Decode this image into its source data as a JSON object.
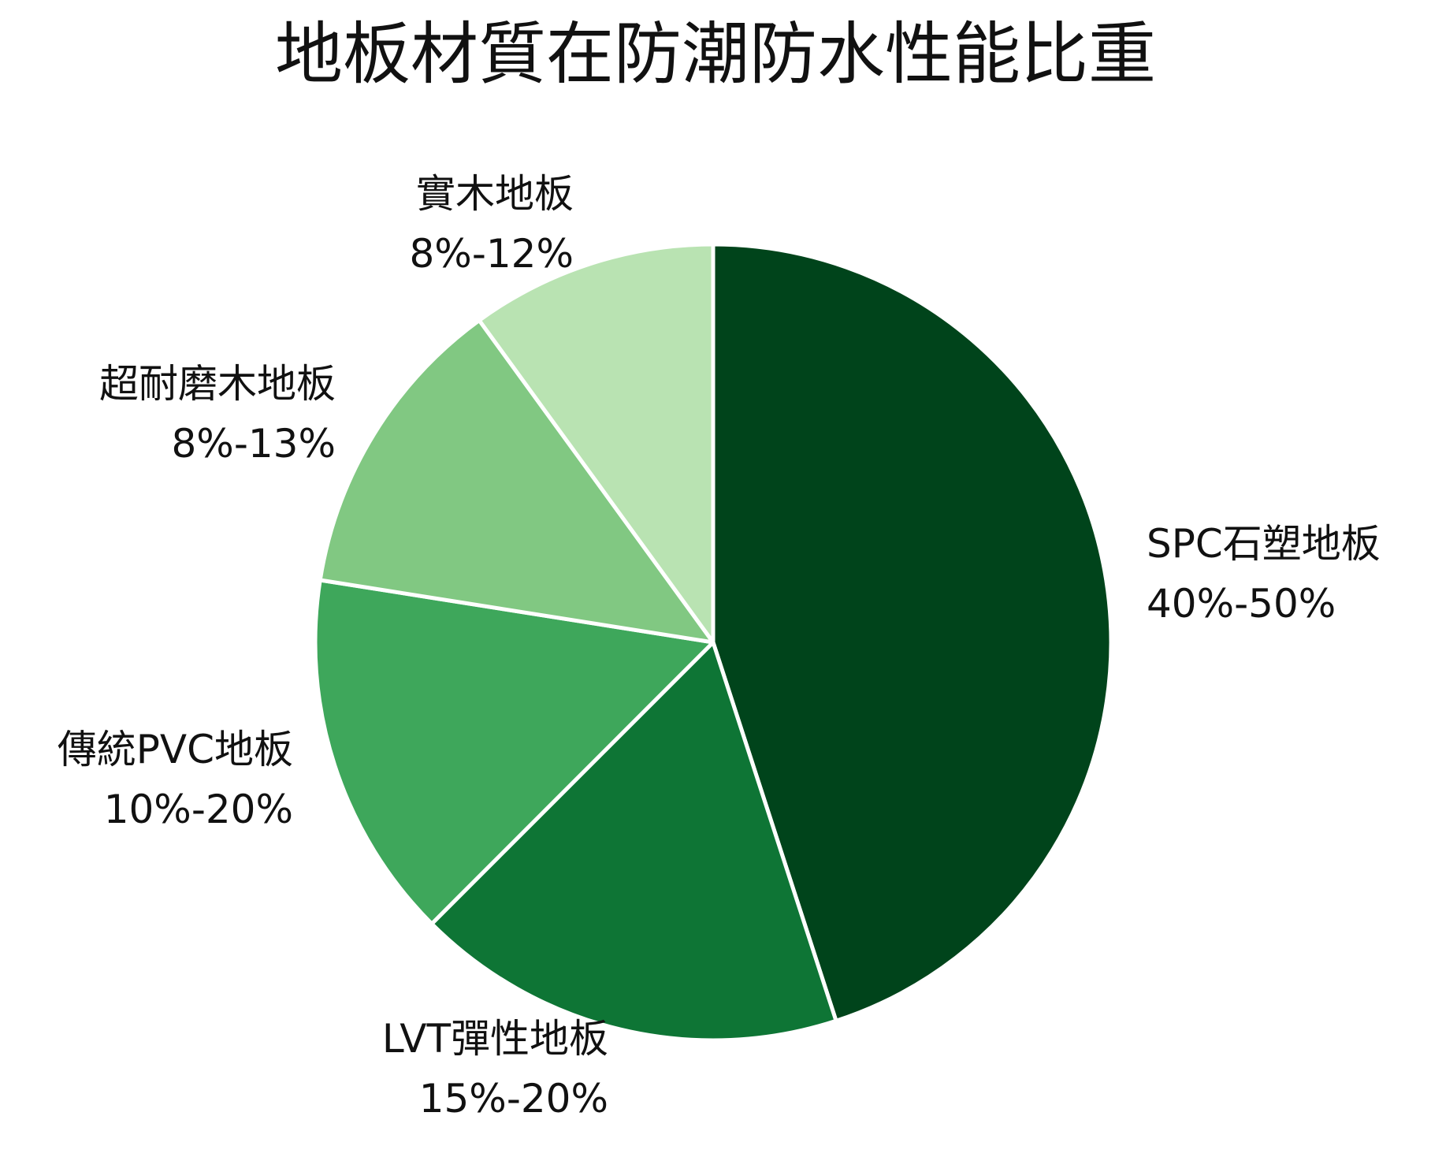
{
  "chart_data": {
    "type": "pie",
    "title": "地板材質在防潮防水性能比重",
    "slices": [
      {
        "name": "SPC石塑地板",
        "range_label": "40%-50%",
        "value": 45,
        "color": "#00441b",
        "label_side": "right"
      },
      {
        "name": "LVT彈性地板",
        "range_label": "15%-20%",
        "value": 17.5,
        "color": "#0e7535",
        "label_side": "right"
      },
      {
        "name": "傳統PVC地板",
        "range_label": "10%-20%",
        "value": 15,
        "color": "#3ea75b",
        "label_side": "left"
      },
      {
        "name": "超耐磨木地板",
        "range_label": "8%-13%",
        "value": 12.5,
        "color": "#81c882",
        "label_side": "left"
      },
      {
        "name": "實木地板",
        "range_label": "8%-12%",
        "value": 10,
        "color": "#b9e3b2",
        "label_side": "left"
      }
    ],
    "start_angle_deg": 90,
    "direction": "clockwise",
    "slice_border_color": "#ffffff"
  }
}
